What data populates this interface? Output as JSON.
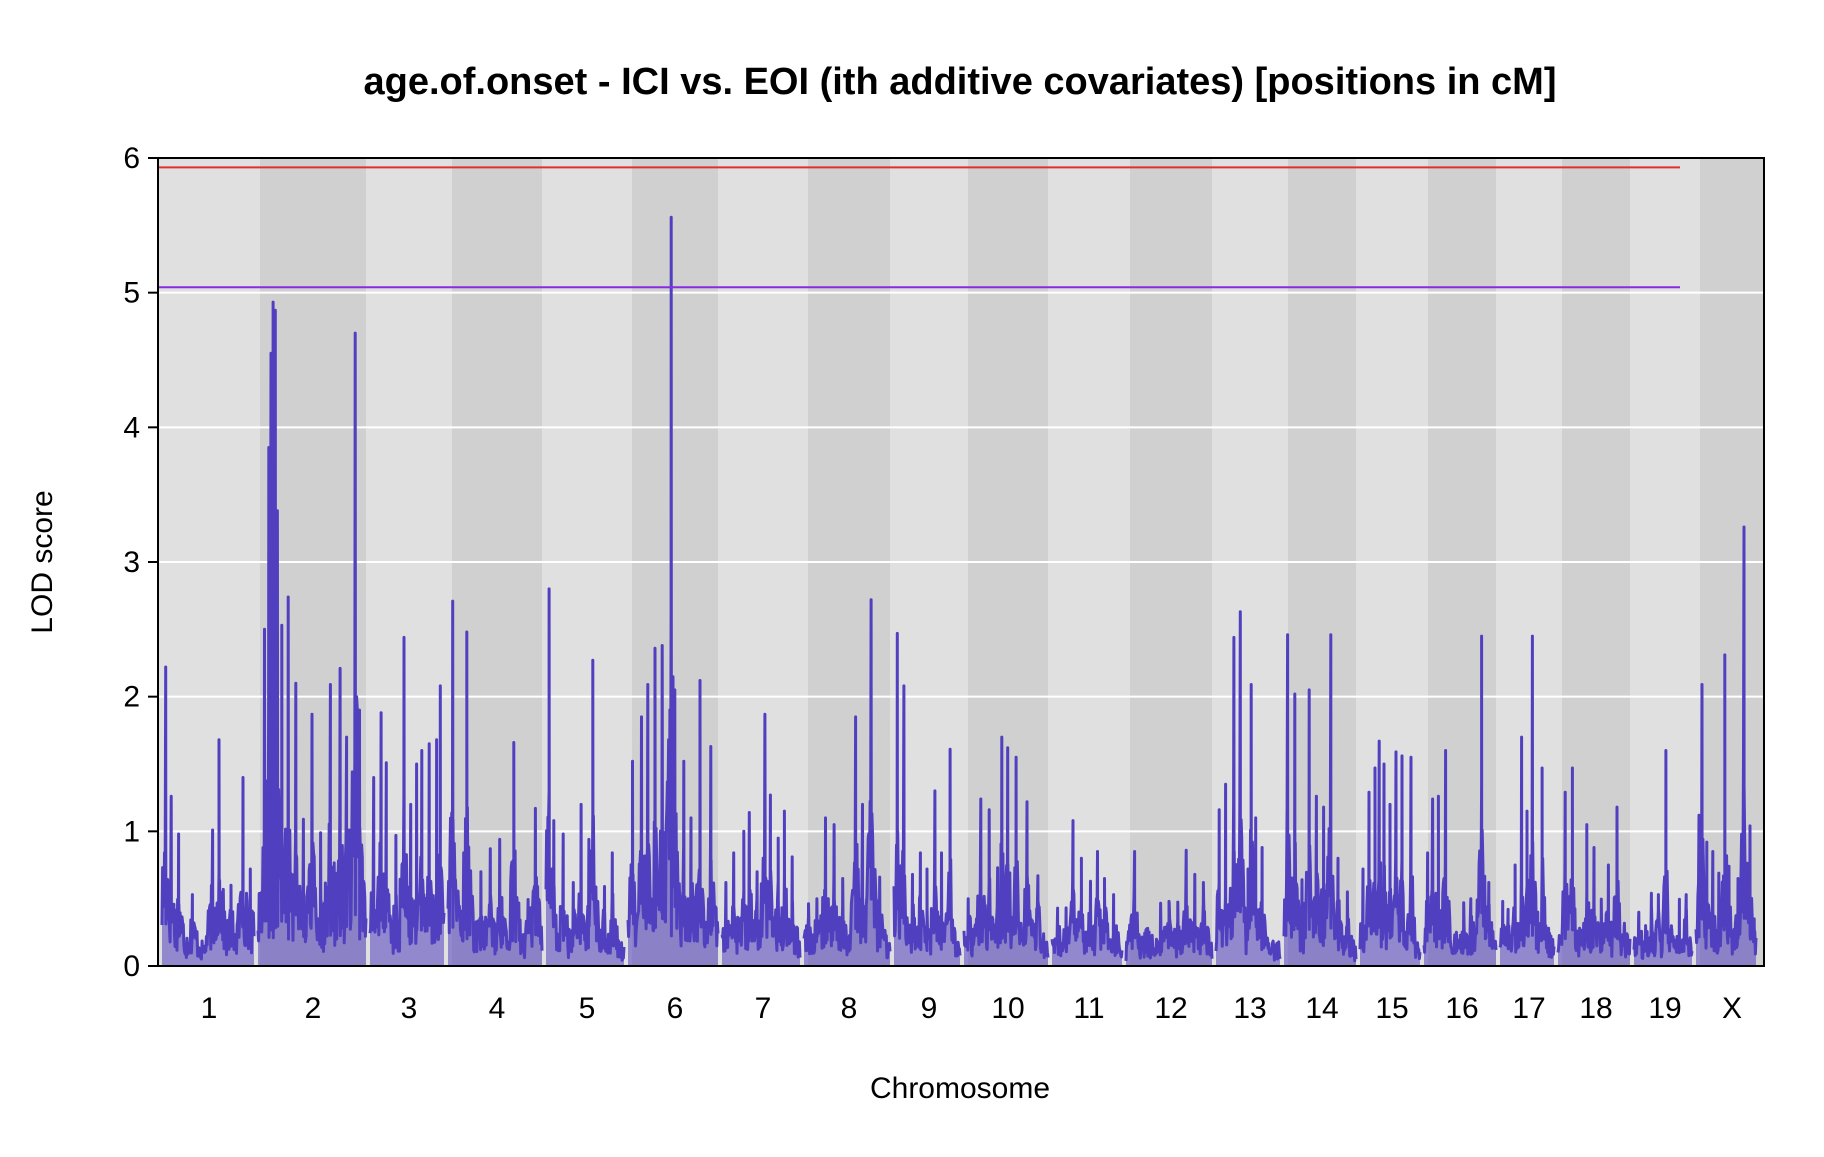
{
  "chart_data": {
    "type": "line",
    "title": "age.of.onset - ICI vs. EOI (ith additive covariates) [positions in cM]",
    "xlabel": "Chromosome",
    "ylabel": "LOD score",
    "ylim": [
      0,
      6
    ],
    "yticks": [
      "0",
      "1",
      "2",
      "3",
      "4",
      "5",
      "6"
    ],
    "grid": true,
    "colors": {
      "series": "#5040c0",
      "threshold_high": "#e03030",
      "threshold_low": "#8a2be2",
      "band_light": "#e0e0e0",
      "band_dark": "#d0d0d0",
      "gridline": "#ffffff"
    },
    "thresholds": [
      {
        "value": 5.93,
        "color": "#e03030"
      },
      {
        "value": 5.04,
        "color": "#8a2be2"
      }
    ],
    "chromosomes": [
      {
        "label": "1",
        "peaks": [
          [
            0.04,
            2.22
          ],
          [
            0.1,
            1.26
          ],
          [
            0.18,
            0.98
          ],
          [
            0.33,
            0.53
          ],
          [
            0.55,
            1.01
          ],
          [
            0.62,
            1.68
          ],
          [
            0.75,
            0.6
          ],
          [
            0.88,
            1.4
          ],
          [
            0.96,
            0.72
          ]
        ]
      },
      {
        "label": "2",
        "peaks": [
          [
            0.06,
            2.5
          ],
          [
            0.1,
            3.85
          ],
          [
            0.12,
            4.55
          ],
          [
            0.14,
            4.93
          ],
          [
            0.16,
            4.87
          ],
          [
            0.18,
            3.38
          ],
          [
            0.22,
            2.53
          ],
          [
            0.28,
            2.74
          ],
          [
            0.35,
            2.1
          ],
          [
            0.42,
            1.09
          ],
          [
            0.5,
            1.87
          ],
          [
            0.58,
            0.99
          ],
          [
            0.67,
            2.09
          ],
          [
            0.76,
            2.21
          ],
          [
            0.82,
            1.7
          ],
          [
            0.9,
            4.7
          ],
          [
            0.94,
            1.9
          ]
        ]
      },
      {
        "label": "3",
        "peaks": [
          [
            0.05,
            1.4
          ],
          [
            0.15,
            1.88
          ],
          [
            0.22,
            1.51
          ],
          [
            0.35,
            0.97
          ],
          [
            0.46,
            2.44
          ],
          [
            0.55,
            1.2
          ],
          [
            0.63,
            1.5
          ],
          [
            0.7,
            1.6
          ],
          [
            0.8,
            1.65
          ],
          [
            0.9,
            1.68
          ],
          [
            0.95,
            2.08
          ]
        ]
      },
      {
        "label": "4",
        "peaks": [
          [
            0.05,
            2.71
          ],
          [
            0.2,
            2.48
          ],
          [
            0.35,
            0.7
          ],
          [
            0.45,
            0.87
          ],
          [
            0.55,
            0.94
          ],
          [
            0.7,
            1.66
          ],
          [
            0.85,
            0.4
          ],
          [
            0.93,
            1.17
          ]
        ]
      },
      {
        "label": "5",
        "peaks": [
          [
            0.04,
            2.8
          ],
          [
            0.1,
            1.08
          ],
          [
            0.22,
            0.98
          ],
          [
            0.35,
            0.62
          ],
          [
            0.45,
            1.2
          ],
          [
            0.55,
            0.94
          ],
          [
            0.6,
            2.27
          ],
          [
            0.75,
            0.59
          ],
          [
            0.85,
            0.84
          ]
        ]
      },
      {
        "label": "6",
        "peaks": [
          [
            0.05,
            1.52
          ],
          [
            0.15,
            1.85
          ],
          [
            0.22,
            2.09
          ],
          [
            0.3,
            2.36
          ],
          [
            0.38,
            2.38
          ],
          [
            0.48,
            5.56
          ],
          [
            0.52,
            2.05
          ],
          [
            0.62,
            1.52
          ],
          [
            0.7,
            1.1
          ],
          [
            0.8,
            2.12
          ],
          [
            0.92,
            1.63
          ]
        ]
      },
      {
        "label": "7",
        "peaks": [
          [
            0.05,
            0.62
          ],
          [
            0.15,
            0.84
          ],
          [
            0.28,
            1.0
          ],
          [
            0.35,
            1.14
          ],
          [
            0.45,
            0.7
          ],
          [
            0.55,
            1.87
          ],
          [
            0.62,
            1.27
          ],
          [
            0.72,
            0.95
          ],
          [
            0.8,
            1.15
          ],
          [
            0.9,
            0.81
          ]
        ]
      },
      {
        "label": "8",
        "peaks": [
          [
            0.05,
            0.35
          ],
          [
            0.15,
            0.5
          ],
          [
            0.25,
            1.1
          ],
          [
            0.35,
            1.05
          ],
          [
            0.45,
            0.65
          ],
          [
            0.6,
            1.85
          ],
          [
            0.68,
            1.2
          ],
          [
            0.78,
            2.72
          ],
          [
            0.88,
            0.66
          ]
        ]
      },
      {
        "label": "9",
        "peaks": [
          [
            0.05,
            2.47
          ],
          [
            0.15,
            2.08
          ],
          [
            0.28,
            0.68
          ],
          [
            0.4,
            0.84
          ],
          [
            0.5,
            0.72
          ],
          [
            0.62,
            1.3
          ],
          [
            0.72,
            0.84
          ],
          [
            0.85,
            1.61
          ]
        ]
      },
      {
        "label": "10",
        "peaks": [
          [
            0.05,
            0.5
          ],
          [
            0.2,
            1.24
          ],
          [
            0.3,
            1.16
          ],
          [
            0.4,
            0.73
          ],
          [
            0.45,
            1.7
          ],
          [
            0.52,
            1.62
          ],
          [
            0.62,
            1.55
          ],
          [
            0.75,
            1.22
          ],
          [
            0.88,
            0.67
          ]
        ]
      },
      {
        "label": "11",
        "peaks": [
          [
            0.08,
            0.43
          ],
          [
            0.2,
            0.35
          ],
          [
            0.3,
            1.08
          ],
          [
            0.42,
            0.8
          ],
          [
            0.55,
            0.63
          ],
          [
            0.65,
            0.85
          ],
          [
            0.75,
            0.65
          ],
          [
            0.88,
            0.53
          ]
        ]
      },
      {
        "label": "12",
        "peaks": [
          [
            0.1,
            0.85
          ],
          [
            0.25,
            0.25
          ],
          [
            0.4,
            0.28
          ],
          [
            0.5,
            0.48
          ],
          [
            0.6,
            0.32
          ],
          [
            0.7,
            0.86
          ],
          [
            0.8,
            0.68
          ],
          [
            0.9,
            0.62
          ]
        ]
      },
      {
        "label": "13",
        "peaks": [
          [
            0.05,
            1.16
          ],
          [
            0.15,
            1.35
          ],
          [
            0.28,
            2.44
          ],
          [
            0.38,
            2.63
          ],
          [
            0.5,
            0.72
          ],
          [
            0.55,
            2.09
          ],
          [
            0.62,
            1.1
          ],
          [
            0.72,
            0.88
          ]
        ]
      },
      {
        "label": "14",
        "peaks": [
          [
            0.05,
            2.46
          ],
          [
            0.15,
            2.02
          ],
          [
            0.25,
            0.64
          ],
          [
            0.35,
            2.05
          ],
          [
            0.45,
            1.26
          ],
          [
            0.55,
            1.18
          ],
          [
            0.65,
            2.46
          ],
          [
            0.75,
            0.8
          ],
          [
            0.88,
            0.55
          ]
        ]
      },
      {
        "label": "15",
        "peaks": [
          [
            0.05,
            0.72
          ],
          [
            0.15,
            1.29
          ],
          [
            0.25,
            1.47
          ],
          [
            0.32,
            1.67
          ],
          [
            0.4,
            1.5
          ],
          [
            0.5,
            1.2
          ],
          [
            0.6,
            1.59
          ],
          [
            0.7,
            1.56
          ],
          [
            0.85,
            1.55
          ]
        ]
      },
      {
        "label": "16",
        "peaks": [
          [
            0.05,
            0.84
          ],
          [
            0.12,
            1.24
          ],
          [
            0.2,
            1.26
          ],
          [
            0.3,
            1.6
          ],
          [
            0.45,
            0.25
          ],
          [
            0.55,
            0.3
          ],
          [
            0.65,
            0.5
          ],
          [
            0.8,
            2.45
          ],
          [
            0.9,
            0.62
          ]
        ]
      },
      {
        "label": "17",
        "peaks": [
          [
            0.05,
            0.48
          ],
          [
            0.15,
            0.42
          ],
          [
            0.28,
            0.75
          ],
          [
            0.4,
            1.7
          ],
          [
            0.5,
            1.15
          ],
          [
            0.6,
            2.45
          ],
          [
            0.7,
            0.4
          ],
          [
            0.78,
            1.47
          ],
          [
            0.9,
            0.28
          ]
        ]
      },
      {
        "label": "18",
        "peaks": [
          [
            0.1,
            1.29
          ],
          [
            0.2,
            1.47
          ],
          [
            0.3,
            0.28
          ],
          [
            0.4,
            1.05
          ],
          [
            0.5,
            0.88
          ],
          [
            0.6,
            0.3
          ],
          [
            0.7,
            0.75
          ],
          [
            0.82,
            1.18
          ],
          [
            0.92,
            0.3
          ]
        ]
      },
      {
        "label": "19",
        "peaks": [
          [
            0.08,
            0.35
          ],
          [
            0.2,
            0.3
          ],
          [
            0.3,
            0.54
          ],
          [
            0.42,
            0.53
          ],
          [
            0.55,
            1.6
          ],
          [
            0.65,
            0.25
          ],
          [
            0.78,
            0.18
          ],
          [
            0.9,
            0.53
          ]
        ]
      },
      {
        "label": "X",
        "peaks": [
          [
            0.05,
            1.12
          ],
          [
            0.1,
            2.09
          ],
          [
            0.18,
            0.92
          ],
          [
            0.28,
            0.85
          ],
          [
            0.38,
            0.69
          ],
          [
            0.48,
            2.31
          ],
          [
            0.55,
            0.74
          ],
          [
            0.7,
            0.65
          ],
          [
            0.8,
            3.26
          ],
          [
            0.9,
            1.04
          ],
          [
            0.97,
            0.35
          ]
        ]
      }
    ]
  }
}
